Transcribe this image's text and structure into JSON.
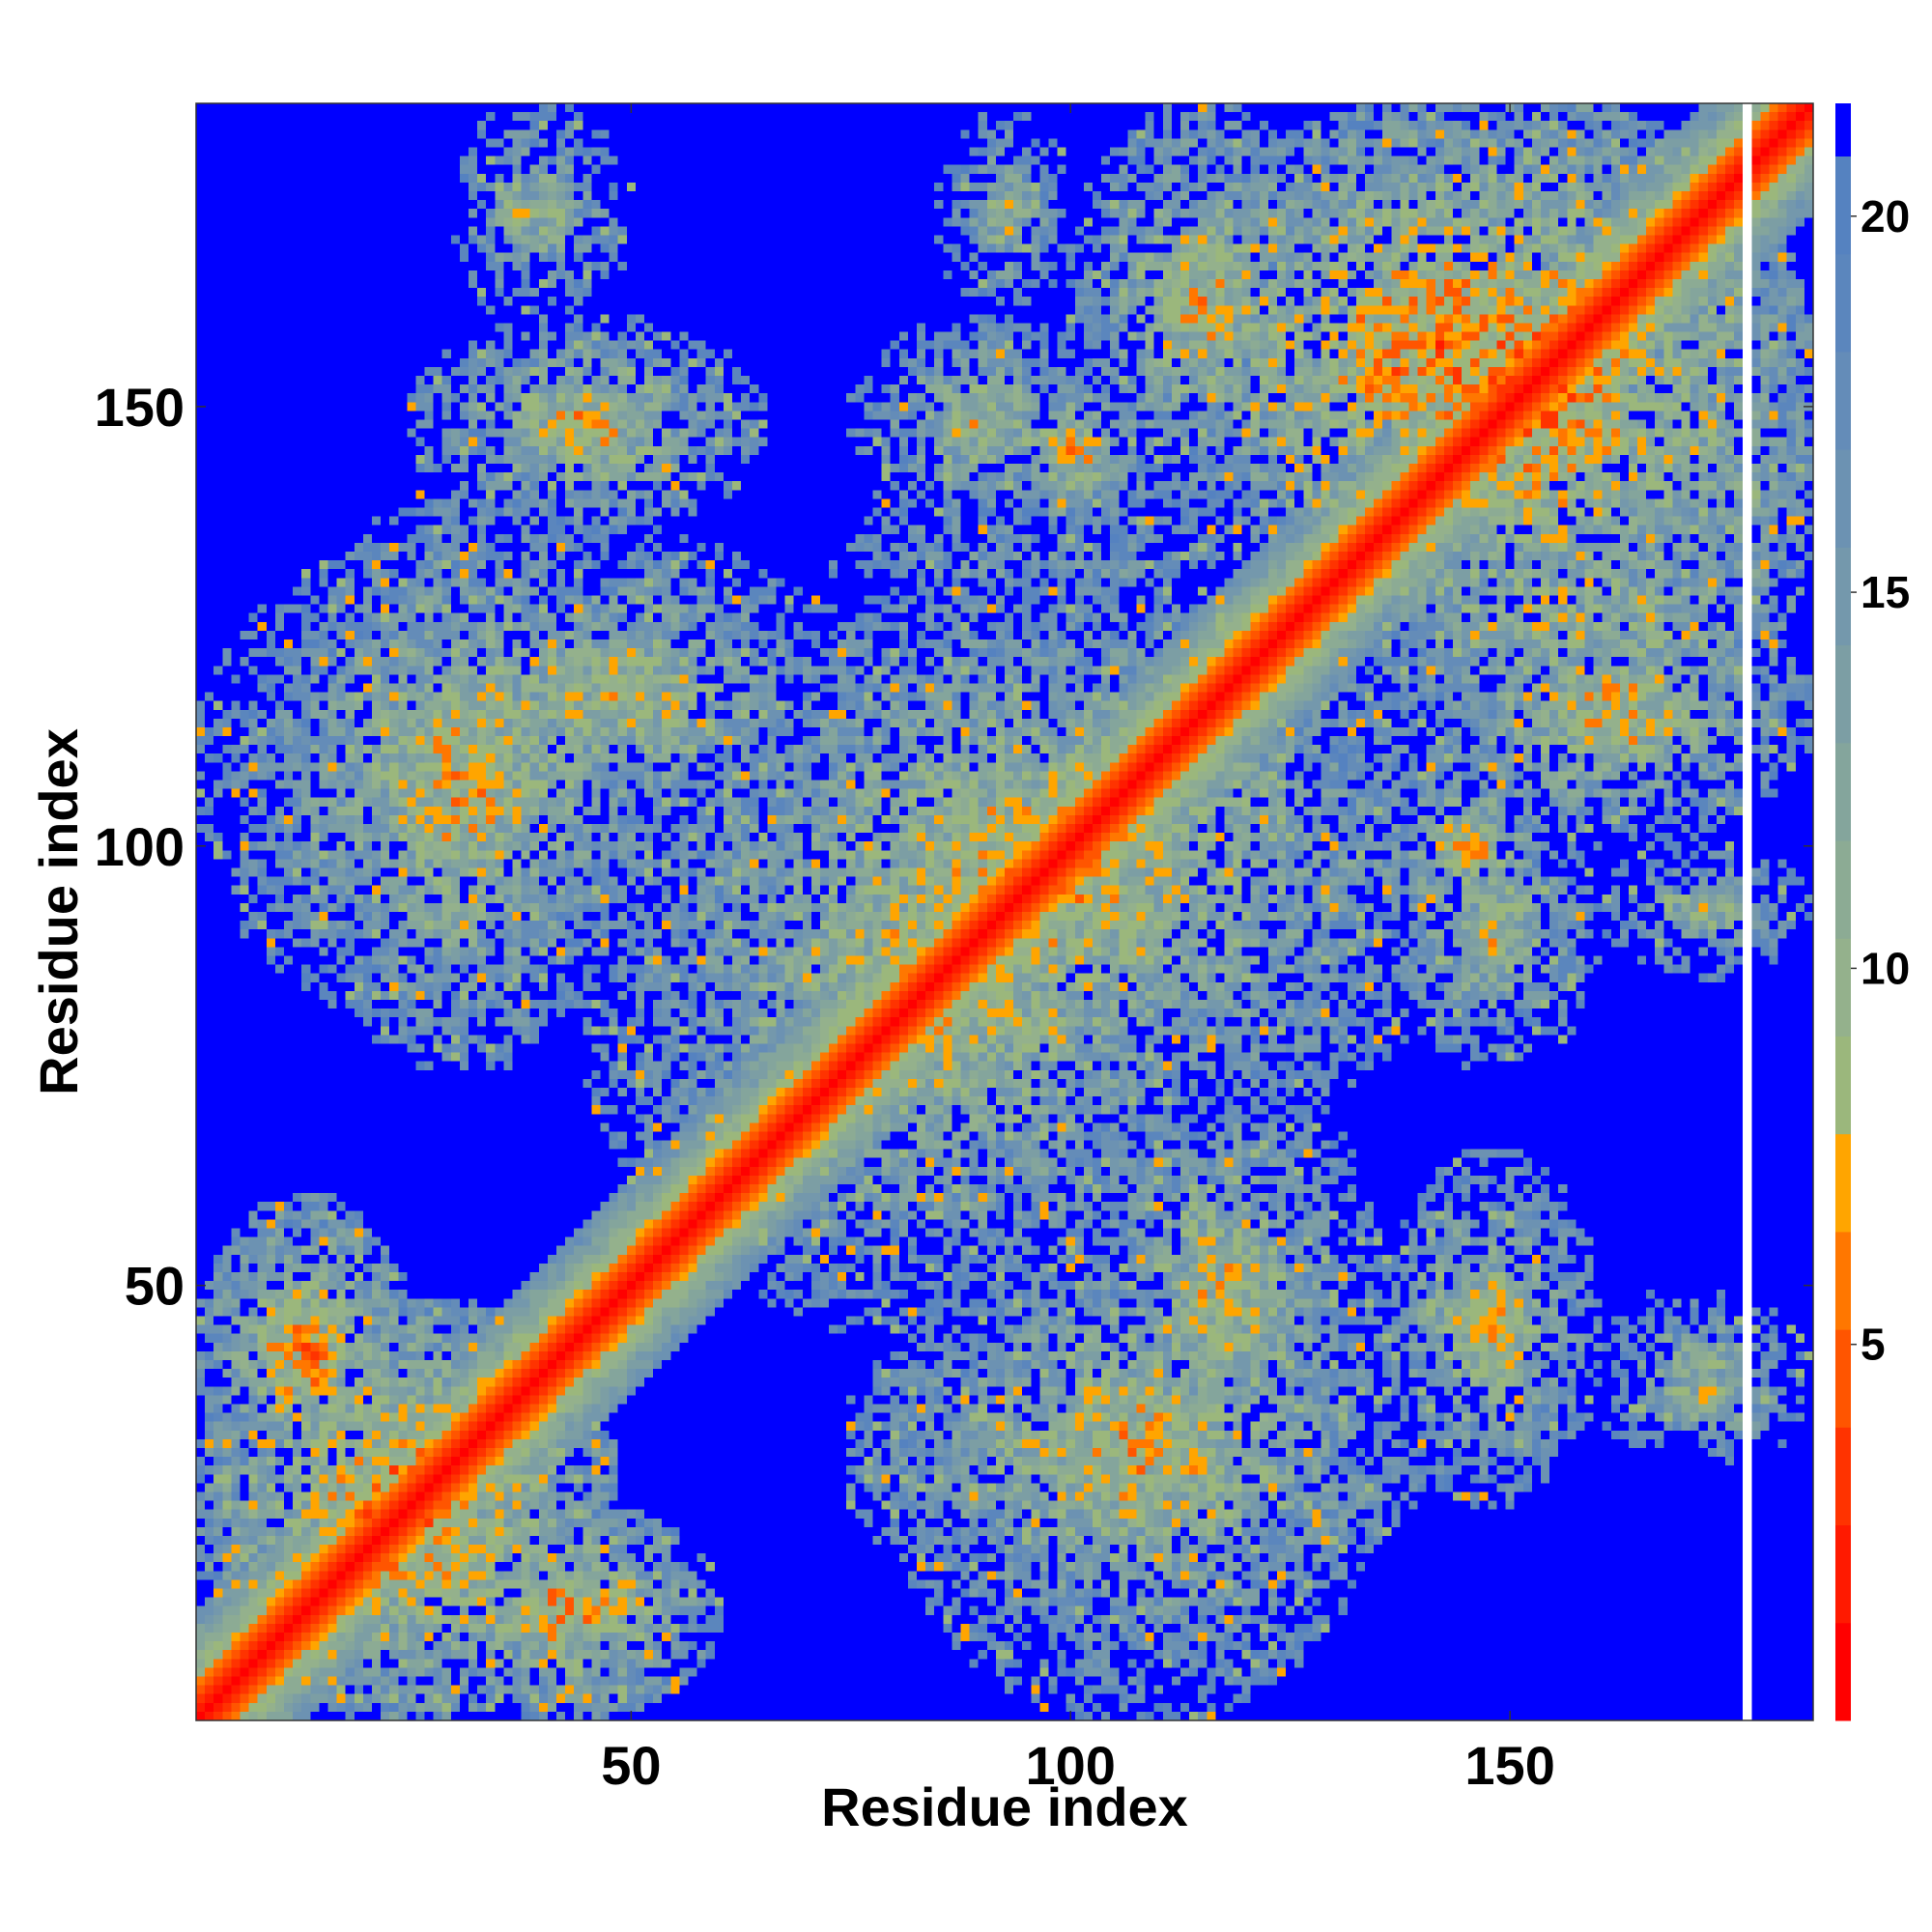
{
  "chart_data": {
    "type": "heatmap",
    "title": "",
    "xlabel": "Residue index",
    "ylabel": "Residue index",
    "n_residues": 184,
    "xlim": [
      0.5,
      184.5
    ],
    "ylim": [
      0.5,
      184.5
    ],
    "x_ticks": [
      50,
      100,
      150
    ],
    "y_ticks": [
      50,
      100,
      150
    ],
    "x_tick_labels": [
      "50",
      "100",
      "150"
    ],
    "y_tick_labels": [
      "50",
      "100",
      "150"
    ],
    "colorbar": {
      "range": [
        0,
        21.5
      ],
      "ticks": [
        5,
        10,
        15,
        20
      ],
      "tick_labels": [
        "5",
        "10",
        "15",
        "20"
      ],
      "levels": [
        {
          "max": 1.3,
          "color": "#ff0000"
        },
        {
          "max": 2.6,
          "color": "#ff1a00"
        },
        {
          "max": 3.9,
          "color": "#ff3300"
        },
        {
          "max": 5.2,
          "color": "#ff5500"
        },
        {
          "max": 6.5,
          "color": "#ff7700"
        },
        {
          "max": 7.8,
          "color": "#ffa500"
        },
        {
          "max": 9.1,
          "color": "#9bb77c"
        },
        {
          "max": 10.4,
          "color": "#94b18c"
        },
        {
          "max": 11.7,
          "color": "#8cab94"
        },
        {
          "max": 13.0,
          "color": "#84a59c"
        },
        {
          "max": 14.3,
          "color": "#7c9ea4"
        },
        {
          "max": 15.6,
          "color": "#7498ac"
        },
        {
          "max": 16.9,
          "color": "#6c92b2"
        },
        {
          "max": 18.2,
          "color": "#648cb8"
        },
        {
          "max": 19.5,
          "color": "#5b86bd"
        },
        {
          "max": 20.8,
          "color": "#5582c0"
        },
        {
          "max": 21.5,
          "color": "#0000ff"
        }
      ]
    },
    "cutoff_distance": 20,
    "contact_blocks": [
      {
        "x": [
          1,
          48
        ],
        "y": [
          1,
          48
        ],
        "min": 6,
        "intensity": 0.7
      },
      {
        "x": [
          45,
          125
        ],
        "y": [
          45,
          125
        ],
        "min": 9,
        "intensity": 0.55
      },
      {
        "x": [
          120,
          184
        ],
        "y": [
          120,
          184
        ],
        "min": 6,
        "intensity": 0.65
      },
      {
        "x": [
          1,
          60
        ],
        "y": [
          80,
          135
        ],
        "min": 9,
        "intensity": 0.55
      },
      {
        "x": [
          50,
          145
        ],
        "y": [
          65,
          130
        ],
        "min": 8,
        "intensity": 0.5
      },
      {
        "x": [
          75,
          140
        ],
        "y": [
          12,
          50
        ],
        "min": 8,
        "intensity": 0.5
      },
      {
        "x": [
          100,
          135
        ],
        "y": [
          22,
          75
        ],
        "min": 9,
        "intensity": 0.45
      },
      {
        "x": [
          135,
          155
        ],
        "y": [
          90,
          110
        ],
        "min": 8,
        "intensity": 0.5
      },
      {
        "x": [
          135,
          160
        ],
        "y": [
          28,
          62
        ],
        "min": 8,
        "intensity": 0.45
      },
      {
        "x": [
          75,
          105
        ],
        "y": [
          136,
          160
        ],
        "min": 9,
        "intensity": 0.45
      },
      {
        "x": [
          25,
          65
        ],
        "y": [
          136,
          160
        ],
        "min": 9,
        "intensity": 0.45
      },
      {
        "x": [
          110,
          175
        ],
        "y": [
          130,
          184
        ],
        "min": 6,
        "intensity": 0.55
      },
      {
        "x": [
          140,
          184
        ],
        "y": [
          100,
          130
        ],
        "min": 8,
        "intensity": 0.4
      },
      {
        "x": [
          1,
          25
        ],
        "y": [
          25,
          60
        ],
        "min": 7,
        "intensity": 0.55
      },
      {
        "x": [
          30,
          45
        ],
        "y": [
          160,
          184
        ],
        "min": 10,
        "intensity": 0.3
      },
      {
        "x": [
          85,
          100
        ],
        "y": [
          160,
          184
        ],
        "min": 10,
        "intensity": 0.3
      },
      {
        "x": [
          160,
          184
        ],
        "y": [
          30,
          50
        ],
        "min": 10,
        "intensity": 0.3
      }
    ],
    "gap_column": 177
  }
}
